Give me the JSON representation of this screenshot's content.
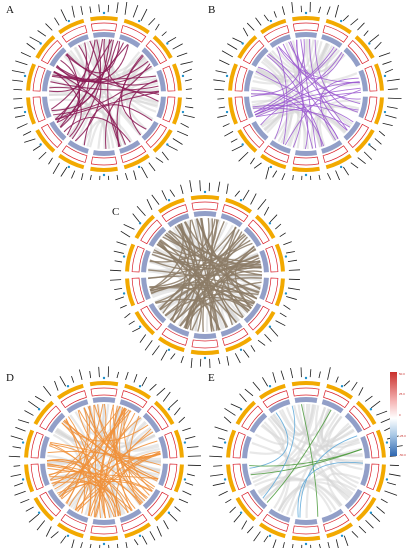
{
  "panels": [
    {
      "id": "A",
      "label": "A",
      "link_color": "#8b1a55",
      "link_count": 34,
      "link_width": 1.1
    },
    {
      "id": "B",
      "label": "B",
      "link_color": "#9b59d0",
      "link_count": 30,
      "link_width": 0.9
    },
    {
      "id": "C",
      "label": "C",
      "link_color": "#8c7b66",
      "link_count": 70,
      "link_width": 1.4
    },
    {
      "id": "D",
      "label": "D",
      "link_color": "#f0913a",
      "link_count": 65,
      "link_width": 1.0
    },
    {
      "id": "E",
      "label": "E",
      "link_color": "#4a9a3a",
      "link_count": 8,
      "link_width": 0.9,
      "second_link_color": "#5aa7d8"
    }
  ],
  "colors": {
    "chromosome_band": "#f2a900",
    "red_track": "#d9202a",
    "blue_track": "#6d7fb5",
    "gray_links": "#d6d6d6",
    "gene_label": "#1a1a1a",
    "chrom_label": "#1f8fc9"
  },
  "legend": {
    "ticks": [
      "50.0",
      "25.0",
      "0",
      "-25.0",
      "-50.0"
    ]
  }
}
